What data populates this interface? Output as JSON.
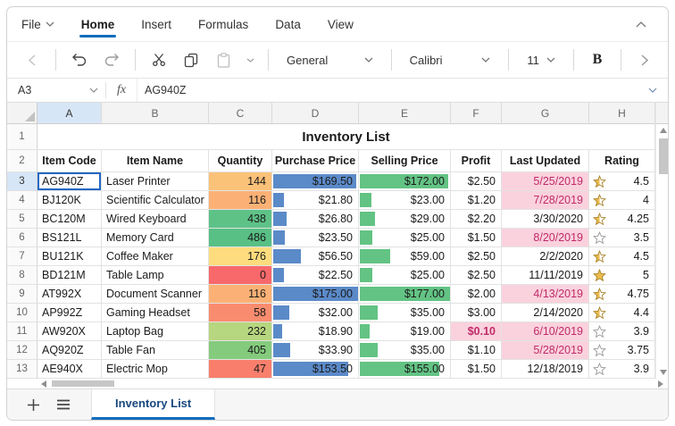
{
  "menu": {
    "file_label": "File",
    "tabs": [
      {
        "label": "Home",
        "active": true
      },
      {
        "label": "Insert",
        "active": false
      },
      {
        "label": "Formulas",
        "active": false
      },
      {
        "label": "Data",
        "active": false
      },
      {
        "label": "View",
        "active": false
      }
    ]
  },
  "toolbar": {
    "number_format": "General",
    "font_name": "Calibri",
    "font_size": "11",
    "bold_label": "B",
    "icons": [
      "chevron-left",
      "undo",
      "redo",
      "cut",
      "copy",
      "paste",
      "paste-dropdown",
      "bold",
      "chevron-right"
    ]
  },
  "formula_bar": {
    "name_box": "A3",
    "fx_label": "fx",
    "value": "AG940Z"
  },
  "grid": {
    "columns": [
      "A",
      "B",
      "C",
      "D",
      "E",
      "F",
      "G",
      "H"
    ],
    "selected_column": "A",
    "selected_row_num": 3,
    "title_row_num": "1",
    "header_row_num": "2",
    "title": "Inventory List",
    "headers": [
      "Item Code",
      "Item Name",
      "Quantity",
      "Purchase Price",
      "Selling Price",
      "Profit",
      "Last Updated",
      "Rating"
    ],
    "max_purchase": 175,
    "max_selling": 177,
    "colors": {
      "purchase_bar": "#5b8ac8",
      "selling_bar": "#63c384",
      "date_highlight_bg": "#fad2dd",
      "date_highlight_text": "#c02a68",
      "selection_blue": "#2368c4",
      "star_fill": "#edbd4d",
      "star_stroke": "#a8842c",
      "star_empty_stroke": "#999999"
    },
    "rows": [
      {
        "n": 3,
        "item_code": "AG940Z",
        "item_name": "Laser Printer",
        "qty": "144",
        "qty_color": "#fac179",
        "purchase_text": "$169.50",
        "purchase_value": 169.5,
        "selling_text": "$172.00",
        "selling_value": 172,
        "profit": "$2.50",
        "profit_highlight": false,
        "last_updated": "5/25/2019",
        "date_highlight": true,
        "star": "half",
        "rating": "4.5",
        "selected": true
      },
      {
        "n": 4,
        "item_code": "BJ120K",
        "item_name": "Scientific Calculator",
        "qty": "116",
        "qty_color": "#fbb175",
        "purchase_text": "$21.80",
        "purchase_value": 21.8,
        "selling_text": "$23.00",
        "selling_value": 23,
        "profit": "$1.20",
        "profit_highlight": false,
        "last_updated": "7/28/2019",
        "date_highlight": true,
        "star": "half",
        "rating": "4",
        "selected": false
      },
      {
        "n": 5,
        "item_code": "BC120M",
        "item_name": "Wired Keyboard",
        "qty": "438",
        "qty_color": "#5ec287",
        "purchase_text": "$26.80",
        "purchase_value": 26.8,
        "selling_text": "$29.00",
        "selling_value": 29,
        "profit": "$2.20",
        "profit_highlight": false,
        "last_updated": "3/30/2020",
        "date_highlight": false,
        "star": "half",
        "rating": "4.25",
        "selected": false
      },
      {
        "n": 6,
        "item_code": "BS121L",
        "item_name": "Memory Card",
        "qty": "486",
        "qty_color": "#58c085",
        "purchase_text": "$23.50",
        "purchase_value": 23.5,
        "selling_text": "$25.00",
        "selling_value": 25,
        "profit": "$1.50",
        "profit_highlight": false,
        "last_updated": "8/20/2019",
        "date_highlight": true,
        "star": "empty",
        "rating": "3.5",
        "selected": false
      },
      {
        "n": 7,
        "item_code": "BU121K",
        "item_name": "Coffee Maker",
        "qty": "176",
        "qty_color": "#fcdc7d",
        "purchase_text": "$56.50",
        "purchase_value": 56.5,
        "selling_text": "$59.00",
        "selling_value": 59,
        "profit": "$2.50",
        "profit_highlight": false,
        "last_updated": "2/2/2020",
        "date_highlight": false,
        "star": "half",
        "rating": "4.5",
        "selected": false
      },
      {
        "n": 8,
        "item_code": "BD121M",
        "item_name": "Table Lamp",
        "qty": "0",
        "qty_color": "#f8696b",
        "purchase_text": "$22.50",
        "purchase_value": 22.5,
        "selling_text": "$25.00",
        "selling_value": 25,
        "profit": "$2.50",
        "profit_highlight": false,
        "last_updated": "11/11/2019",
        "date_highlight": false,
        "star": "full",
        "rating": "5",
        "selected": false
      },
      {
        "n": 9,
        "item_code": "AT992X",
        "item_name": "Document Scanner",
        "qty": "116",
        "qty_color": "#fbb175",
        "purchase_text": "$175.00",
        "purchase_value": 175,
        "selling_text": "$177.00",
        "selling_value": 177,
        "profit": "$2.00",
        "profit_highlight": false,
        "last_updated": "4/13/2019",
        "date_highlight": true,
        "star": "half",
        "rating": "4.75",
        "selected": false
      },
      {
        "n": 10,
        "item_code": "AP992Z",
        "item_name": "Gaming Headset",
        "qty": "58",
        "qty_color": "#f98c6f",
        "purchase_text": "$32.00",
        "purchase_value": 32,
        "selling_text": "$35.00",
        "selling_value": 35,
        "profit": "$3.00",
        "profit_highlight": false,
        "last_updated": "2/14/2020",
        "date_highlight": false,
        "star": "half",
        "rating": "4.4",
        "selected": false
      },
      {
        "n": 11,
        "item_code": "AW920X",
        "item_name": "Laptop Bag",
        "qty": "232",
        "qty_color": "#b6d67f",
        "purchase_text": "$18.90",
        "purchase_value": 18.9,
        "selling_text": "$19.00",
        "selling_value": 19,
        "profit": "$0.10",
        "profit_highlight": true,
        "last_updated": "6/10/2019",
        "date_highlight": true,
        "star": "empty",
        "rating": "3.9",
        "selected": false
      },
      {
        "n": 12,
        "item_code": "AQ920Z",
        "item_name": "Table Fan",
        "qty": "405",
        "qty_color": "#84cb7d",
        "purchase_text": "$33.90",
        "purchase_value": 33.9,
        "selling_text": "$35.00",
        "selling_value": 35,
        "profit": "$1.10",
        "profit_highlight": false,
        "last_updated": "5/28/2019",
        "date_highlight": true,
        "star": "empty",
        "rating": "3.75",
        "selected": false
      },
      {
        "n": 13,
        "item_code": "AE940X",
        "item_name": "Electric Mop",
        "qty": "47",
        "qty_color": "#f97f6c",
        "purchase_text": "$153.50",
        "purchase_value": 153.5,
        "selling_text": "$155.00",
        "selling_value": 155,
        "profit": "$1.50",
        "profit_highlight": false,
        "last_updated": "12/18/2019",
        "date_highlight": false,
        "star": "empty",
        "rating": "3.9",
        "selected": false
      }
    ]
  },
  "sheet_bar": {
    "tab_label": "Inventory List"
  }
}
